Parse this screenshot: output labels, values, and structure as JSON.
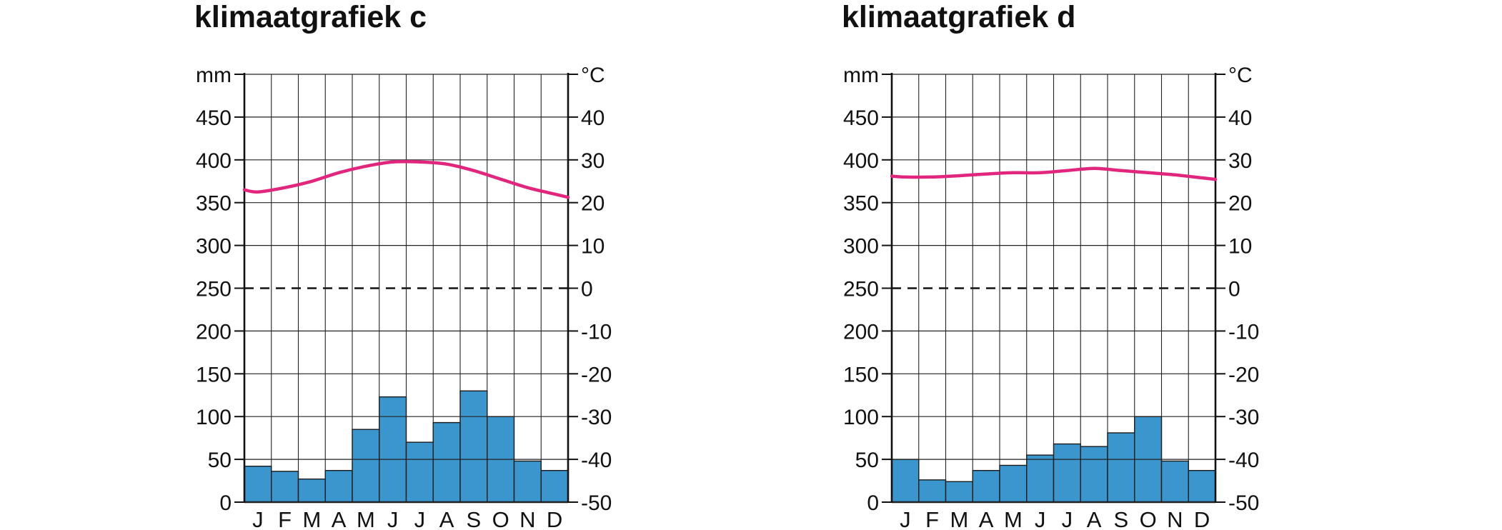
{
  "colors": {
    "bar": "#3a96cc",
    "temperature": "#e0267d",
    "grid": "#222222"
  },
  "chart_data": [
    {
      "type": "climate-chart",
      "title": "klimaatgrafiek c",
      "months": [
        "J",
        "F",
        "M",
        "A",
        "M",
        "J",
        "J",
        "A",
        "S",
        "O",
        "N",
        "D"
      ],
      "precipitation_unit": "mm",
      "temperature_unit": "°C",
      "precipitation_ticks": [
        "0",
        "50",
        "100",
        "150",
        "200",
        "250",
        "300",
        "350",
        "400",
        "450"
      ],
      "temperature_ticks": [
        "-50",
        "-40",
        "-30",
        "-20",
        "-10",
        "0",
        "10",
        "20",
        "30",
        "40"
      ],
      "precipitation_range": [
        0,
        500
      ],
      "temperature_range": [
        -50,
        50
      ],
      "precipitation": [
        42,
        36,
        27,
        37,
        85,
        123,
        70,
        93,
        130,
        100,
        48,
        37
      ],
      "temperature": [
        22.5,
        23.5,
        25,
        27,
        28.5,
        29.5,
        29.5,
        29,
        27.5,
        25.5,
        23.5,
        22
      ],
      "temperature_start": 23
    },
    {
      "type": "climate-chart",
      "title": "klimaatgrafiek d",
      "months": [
        "J",
        "F",
        "M",
        "A",
        "M",
        "J",
        "J",
        "A",
        "S",
        "O",
        "N",
        "D"
      ],
      "precipitation_unit": "mm",
      "temperature_unit": "°C",
      "precipitation_ticks": [
        "0",
        "50",
        "100",
        "150",
        "200",
        "250",
        "300",
        "350",
        "400",
        "450"
      ],
      "temperature_ticks": [
        "-50",
        "-40",
        "-30",
        "-20",
        "-10",
        "0",
        "10",
        "20",
        "30",
        "40"
      ],
      "precipitation_range": [
        0,
        500
      ],
      "temperature_range": [
        -50,
        50
      ],
      "precipitation": [
        50,
        26,
        24,
        37,
        43,
        55,
        68,
        65,
        81,
        100,
        48,
        37
      ],
      "temperature": [
        26,
        26,
        26.3,
        26.7,
        27,
        27,
        27.5,
        28,
        27.5,
        27,
        26.5,
        25.8
      ],
      "temperature_start": 26.2
    }
  ]
}
